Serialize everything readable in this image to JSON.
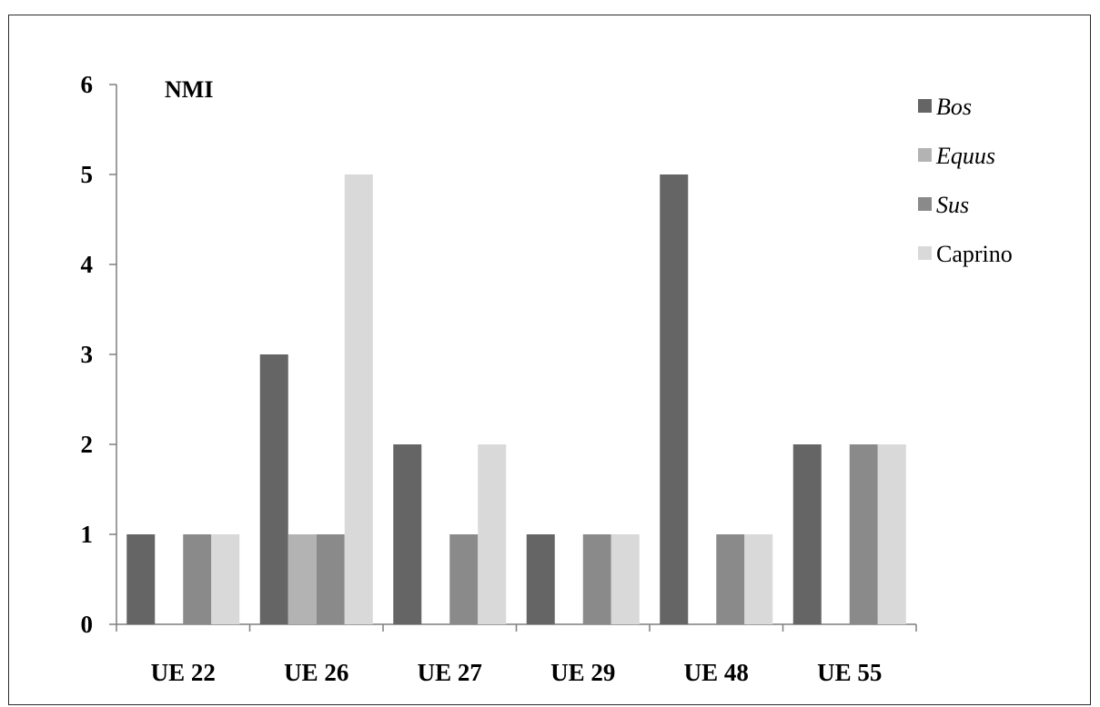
{
  "chart_data": {
    "type": "bar",
    "title": "NMI",
    "xlabel": "",
    "ylabel": "",
    "ylim": [
      0,
      6
    ],
    "yticks": [
      0,
      1,
      2,
      3,
      4,
      5,
      6
    ],
    "categories": [
      "UE 22",
      "UE 26",
      "UE 27",
      "UE 29",
      "UE 48",
      "UE 55"
    ],
    "series": [
      {
        "name": "Bos",
        "italic": true,
        "color": "#656565",
        "values": [
          1,
          3,
          2,
          1,
          5,
          2
        ]
      },
      {
        "name": "Equus",
        "italic": true,
        "color": "#b3b3b3",
        "values": [
          0,
          1,
          0,
          0,
          0,
          0
        ]
      },
      {
        "name": "Sus",
        "italic": true,
        "color": "#8a8a8a",
        "values": [
          1,
          1,
          1,
          1,
          1,
          2
        ]
      },
      {
        "name": "Caprino",
        "italic": false,
        "color": "#d9d9d9",
        "values": [
          1,
          5,
          2,
          1,
          1,
          2
        ]
      }
    ],
    "legend_position": "top-right",
    "grid": false
  }
}
